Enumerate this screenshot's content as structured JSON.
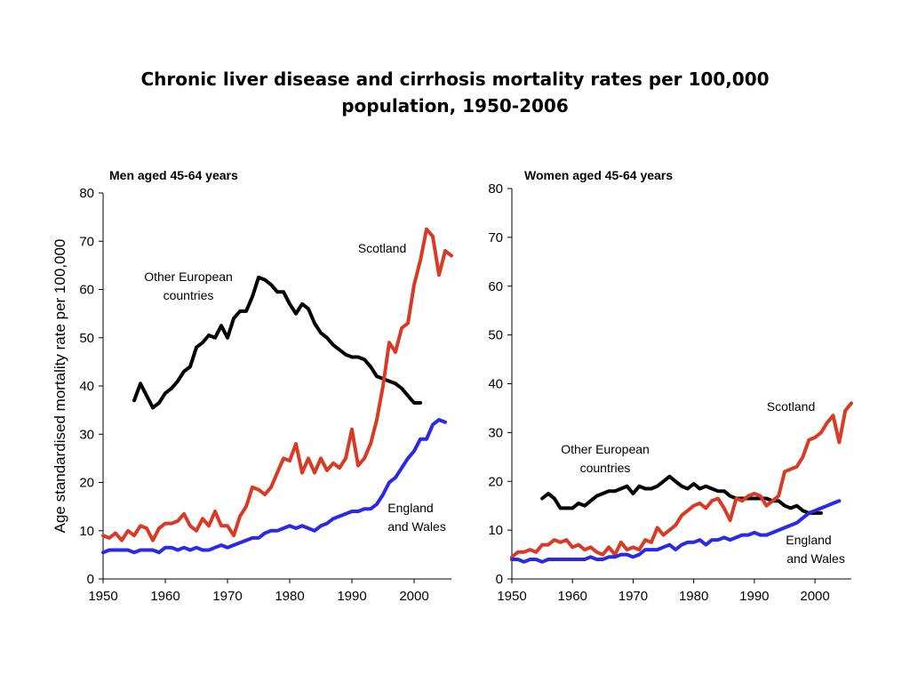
{
  "slide": {
    "title_line1": "Chronic liver disease and cirrhosis mortality rates per 100,000",
    "title_line2": "population, 1950-2006"
  },
  "colors": {
    "scotland": "#d93a26",
    "europe": "#000000",
    "england": "#2a2ae6"
  },
  "chart_data": [
    {
      "type": "line",
      "title": "Men aged 45-64 years",
      "ylabel": "Age standardised mortality rate per 100,000",
      "xlabel": "",
      "xlim": [
        1950,
        2006
      ],
      "ylim": [
        0,
        80
      ],
      "xticks": [
        1950,
        1960,
        1970,
        1980,
        1990,
        2000
      ],
      "yticks": [
        0,
        10,
        20,
        30,
        40,
        50,
        60,
        70,
        80
      ],
      "grid": false,
      "series": [
        {
          "name": "Other European countries",
          "color_key": "europe",
          "x": [
            1955,
            1956,
            1957,
            1958,
            1959,
            1960,
            1961,
            1962,
            1963,
            1964,
            1965,
            1966,
            1967,
            1968,
            1969,
            1970,
            1971,
            1972,
            1973,
            1974,
            1975,
            1976,
            1977,
            1978,
            1979,
            1980,
            1981,
            1982,
            1983,
            1984,
            1985,
            1986,
            1987,
            1988,
            1989,
            1990,
            1991,
            1992,
            1993,
            1994,
            1995,
            1996,
            1997,
            1998,
            1999,
            2000,
            2001
          ],
          "values": [
            37,
            40.5,
            38,
            35.5,
            36.5,
            38.5,
            39.5,
            41,
            43,
            44,
            48,
            49,
            50.5,
            50,
            52.5,
            50,
            54,
            55.5,
            55.5,
            58.5,
            62.5,
            62,
            61,
            59.5,
            59.5,
            57,
            55,
            57,
            56,
            53,
            51,
            50,
            48.5,
            47.5,
            46.5,
            46,
            46,
            45.5,
            44,
            42,
            41.5,
            41,
            40.5,
            39.5,
            38,
            36.5,
            36.5
          ]
        },
        {
          "name": "Scotland",
          "color_key": "scotland",
          "x": [
            1950,
            1951,
            1952,
            1953,
            1954,
            1955,
            1956,
            1957,
            1958,
            1959,
            1960,
            1961,
            1962,
            1963,
            1964,
            1965,
            1966,
            1967,
            1968,
            1969,
            1970,
            1971,
            1972,
            1973,
            1974,
            1975,
            1976,
            1977,
            1978,
            1979,
            1980,
            1981,
            1982,
            1983,
            1984,
            1985,
            1986,
            1987,
            1988,
            1989,
            1990,
            1991,
            1992,
            1993,
            1994,
            1995,
            1996,
            1997,
            1998,
            1999,
            2000,
            2001,
            2002,
            2003,
            2004,
            2005,
            2006
          ],
          "values": [
            9,
            8.5,
            9.5,
            8,
            10,
            9,
            11,
            10.5,
            8,
            10.5,
            11.5,
            11.5,
            12,
            13.5,
            11,
            10,
            12.5,
            11,
            14,
            11,
            11,
            9,
            13,
            15,
            19,
            18.5,
            17.5,
            19,
            22,
            25,
            24.5,
            28,
            22,
            25,
            22,
            25,
            22.5,
            24,
            23,
            25,
            31,
            23.5,
            25,
            28,
            33,
            40,
            49,
            47,
            52,
            53,
            61,
            66,
            72.5,
            71,
            63,
            68,
            67
          ]
        },
        {
          "name": "England and Wales",
          "color_key": "england",
          "x": [
            1950,
            1951,
            1952,
            1953,
            1954,
            1955,
            1956,
            1957,
            1958,
            1959,
            1960,
            1961,
            1962,
            1963,
            1964,
            1965,
            1966,
            1967,
            1968,
            1969,
            1970,
            1971,
            1972,
            1973,
            1974,
            1975,
            1976,
            1977,
            1978,
            1979,
            1980,
            1981,
            1982,
            1983,
            1984,
            1985,
            1986,
            1987,
            1988,
            1989,
            1990,
            1991,
            1992,
            1993,
            1994,
            1995,
            1996,
            1997,
            1998,
            1999,
            2000,
            2001,
            2002,
            2003,
            2004,
            2005
          ],
          "values": [
            5.5,
            6,
            6,
            6,
            6,
            5.5,
            6,
            6,
            6,
            5.5,
            6.5,
            6.5,
            6,
            6.5,
            6,
            6.5,
            6,
            6,
            6.5,
            7,
            6.5,
            7,
            7.5,
            8,
            8.5,
            8.5,
            9.5,
            10,
            10,
            10.5,
            11,
            10.5,
            11,
            10.5,
            10,
            11,
            11.5,
            12.5,
            13,
            13.5,
            14,
            14,
            14.5,
            14.5,
            15.5,
            17.5,
            20,
            21,
            23,
            25,
            26.5,
            29,
            29,
            32,
            33,
            32.5
          ]
        }
      ],
      "annotations": {
        "europe_line1": "Other European",
        "europe_line2": "countries",
        "scotland": "Scotland",
        "england_line1": "England",
        "england_line2": "and Wales"
      }
    },
    {
      "type": "line",
      "title": "Women aged 45-64 years",
      "ylabel": "",
      "xlabel": "",
      "xlim": [
        1950,
        2006
      ],
      "ylim": [
        0,
        80
      ],
      "xticks": [
        1950,
        1960,
        1970,
        1980,
        1990,
        2000
      ],
      "yticks": [
        0,
        10,
        20,
        30,
        40,
        50,
        60,
        70,
        80
      ],
      "grid": false,
      "series": [
        {
          "name": "Other European countries",
          "color_key": "europe",
          "x": [
            1955,
            1956,
            1957,
            1958,
            1959,
            1960,
            1961,
            1962,
            1963,
            1964,
            1965,
            1966,
            1967,
            1968,
            1969,
            1970,
            1971,
            1972,
            1973,
            1974,
            1975,
            1976,
            1977,
            1978,
            1979,
            1980,
            1981,
            1982,
            1983,
            1984,
            1985,
            1986,
            1987,
            1988,
            1989,
            1990,
            1991,
            1992,
            1993,
            1994,
            1995,
            1996,
            1997,
            1998,
            1999,
            2000,
            2001
          ],
          "values": [
            16.5,
            17.5,
            16.5,
            14.5,
            14.5,
            14.5,
            15.5,
            15,
            16,
            17,
            17.5,
            18,
            18,
            18.5,
            19,
            17.5,
            19,
            18.5,
            18.5,
            19,
            20,
            21,
            20,
            19,
            18.5,
            19.5,
            18.5,
            19,
            18.5,
            18,
            18,
            17,
            16.5,
            16.5,
            16.5,
            16.5,
            16.5,
            16.5,
            16,
            16,
            15,
            14.5,
            15,
            14,
            13.5,
            13.5,
            13.5
          ]
        },
        {
          "name": "Scotland",
          "color_key": "scotland",
          "x": [
            1950,
            1951,
            1952,
            1953,
            1954,
            1955,
            1956,
            1957,
            1958,
            1959,
            1960,
            1961,
            1962,
            1963,
            1964,
            1965,
            1966,
            1967,
            1968,
            1969,
            1970,
            1971,
            1972,
            1973,
            1974,
            1975,
            1976,
            1977,
            1978,
            1979,
            1980,
            1981,
            1982,
            1983,
            1984,
            1985,
            1986,
            1987,
            1988,
            1989,
            1990,
            1991,
            1992,
            1993,
            1994,
            1995,
            1996,
            1997,
            1998,
            1999,
            2000,
            2001,
            2002,
            2003,
            2004,
            2005,
            2006
          ],
          "values": [
            4.5,
            5.5,
            5.5,
            6,
            5.5,
            7,
            7,
            8,
            7.5,
            8,
            6.5,
            7,
            6,
            6.5,
            5.5,
            5,
            6.5,
            5,
            7.5,
            6,
            6.5,
            6,
            8,
            7.5,
            10.5,
            9,
            10,
            11,
            13,
            14,
            15,
            15.5,
            14.5,
            16,
            16.5,
            14.5,
            12,
            16.5,
            16,
            17,
            17.5,
            17,
            15,
            16,
            17,
            22,
            22.5,
            23,
            25,
            28.5,
            29,
            30,
            32,
            33.5,
            28,
            34.5,
            36
          ]
        },
        {
          "name": "England and Wales",
          "color_key": "england",
          "x": [
            1950,
            1951,
            1952,
            1953,
            1954,
            1955,
            1956,
            1957,
            1958,
            1959,
            1960,
            1961,
            1962,
            1963,
            1964,
            1965,
            1966,
            1967,
            1968,
            1969,
            1970,
            1971,
            1972,
            1973,
            1974,
            1975,
            1976,
            1977,
            1978,
            1979,
            1980,
            1981,
            1982,
            1983,
            1984,
            1985,
            1986,
            1987,
            1988,
            1989,
            1990,
            1991,
            1992,
            1993,
            1994,
            1995,
            1996,
            1997,
            1998,
            1999,
            2000,
            2001,
            2002,
            2003,
            2004
          ],
          "values": [
            4,
            4,
            3.5,
            4,
            4,
            3.5,
            4,
            4,
            4,
            4,
            4,
            4,
            4,
            4.5,
            4,
            4,
            4.5,
            4.5,
            5,
            5,
            4.5,
            5,
            6,
            6,
            6,
            6.5,
            7,
            6,
            7,
            7.5,
            7.5,
            8,
            7,
            8,
            8,
            8.5,
            8,
            8.5,
            9,
            9,
            9.5,
            9,
            9,
            9.5,
            10,
            10.5,
            11,
            11.5,
            12.5,
            13.5,
            14,
            14.5,
            15,
            15.5,
            16
          ]
        }
      ],
      "annotations": {
        "europe_line1": "Other European",
        "europe_line2": "countries",
        "scotland": "Scotland",
        "england_line1": "England",
        "england_line2": "and Wales"
      }
    }
  ]
}
